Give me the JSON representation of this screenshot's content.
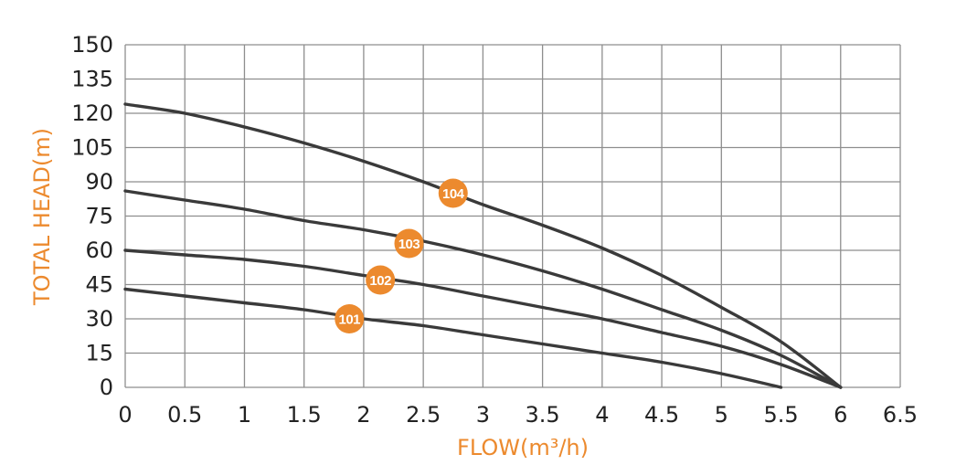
{
  "colors": {
    "curve": "#3a3a3a",
    "grid": "#8e8e8e",
    "accent": "#ec8a2e",
    "badge_text": "#ffffff"
  },
  "chart_data": {
    "type": "line",
    "title": "",
    "xlabel": "FLOW(m³/h)",
    "ylabel": "TOTAL HEAD(m)",
    "xlim": [
      0,
      6.5
    ],
    "ylim": [
      0,
      150
    ],
    "xticks": [
      0,
      0.5,
      1,
      1.5,
      2,
      2.5,
      3,
      3.5,
      4,
      4.5,
      5,
      5.5,
      6,
      6.5
    ],
    "xtick_labels": [
      "0",
      "0.5",
      "1",
      "1.5",
      "2",
      "2.5",
      "3",
      "3.5",
      "4",
      "4.5",
      "5",
      "5.5",
      "6",
      "6.5"
    ],
    "yticks": [
      0,
      15,
      30,
      45,
      60,
      75,
      90,
      105,
      120,
      135,
      150
    ],
    "ytick_labels": [
      "0",
      "15",
      "30",
      "45",
      "60",
      "75",
      "90",
      "105",
      "120",
      "135",
      "150"
    ],
    "grid": true,
    "series": [
      {
        "name": "104",
        "x": [
          0,
          0.5,
          1,
          1.5,
          2,
          2.5,
          3,
          3.5,
          4,
          4.5,
          5,
          5.5,
          6
        ],
        "y": [
          124,
          120,
          114,
          107,
          99,
          90,
          80,
          71,
          61,
          49,
          35,
          20,
          0
        ],
        "badge": {
          "x": 2.75,
          "y": 85
        }
      },
      {
        "name": "103",
        "x": [
          0,
          0.5,
          1,
          1.5,
          2,
          2.5,
          3,
          3.5,
          4,
          4.5,
          5,
          5.5,
          6
        ],
        "y": [
          86,
          82,
          78,
          73,
          69,
          64,
          58,
          51,
          43,
          34,
          25,
          14,
          0
        ],
        "badge": {
          "x": 2.38,
          "y": 63
        }
      },
      {
        "name": "102",
        "x": [
          0,
          0.5,
          1,
          1.5,
          2,
          2.5,
          3,
          3.5,
          4,
          4.5,
          5,
          5.5,
          6
        ],
        "y": [
          60,
          58,
          56,
          53,
          49,
          45,
          40,
          35,
          30,
          24,
          18,
          10,
          0
        ],
        "badge": {
          "x": 2.14,
          "y": 47
        }
      },
      {
        "name": "101",
        "x": [
          0,
          0.5,
          1,
          1.5,
          2,
          2.5,
          3,
          3.5,
          4,
          4.5,
          5,
          5.5
        ],
        "y": [
          43,
          40,
          37,
          34,
          30,
          27,
          23,
          19,
          15,
          11,
          6,
          0
        ],
        "badge": {
          "x": 1.88,
          "y": 30
        }
      }
    ]
  }
}
